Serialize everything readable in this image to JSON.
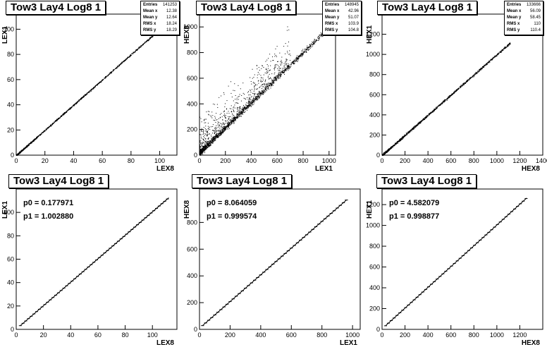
{
  "chart_data": [
    {
      "type": "scatter",
      "title": "Tow3 Lay4 Log8 1",
      "xlabel": "LEX8",
      "ylabel": "LEX1",
      "xlim": [
        0,
        112
      ],
      "ylim": [
        0,
        112
      ],
      "xticks": [
        0,
        20,
        40,
        60,
        80,
        100
      ],
      "yticks": [
        0,
        20,
        40,
        60,
        80,
        100
      ],
      "stats": [
        [
          "Entries",
          "141253"
        ],
        [
          "Mean x",
          "12.38"
        ],
        [
          "Mean y",
          "12.64"
        ],
        [
          "RMS x",
          "18.24"
        ],
        [
          "RMS y",
          "18.29"
        ]
      ],
      "relation": {
        "slope": 1.0,
        "intercept": 0,
        "xmax": 110,
        "spread": 0.6,
        "outliers": 0
      }
    },
    {
      "type": "scatter",
      "title": "Tow3 Lay4 Log8 1",
      "xlabel": "LEX1",
      "ylabel": "HEX8",
      "xlim": [
        0,
        1050
      ],
      "ylim": [
        0,
        1100
      ],
      "xticks": [
        0,
        200,
        400,
        600,
        800,
        1000
      ],
      "yticks": [
        0,
        200,
        400,
        600,
        800,
        1000
      ],
      "stats": [
        [
          "Entries",
          "148945"
        ],
        [
          "Mean x",
          "42.96"
        ],
        [
          "Mean y",
          "51.07"
        ],
        [
          "RMS x",
          "103.9"
        ],
        [
          "RMS y",
          "104.8"
        ]
      ],
      "relation": {
        "slope": 1.0,
        "intercept": 20,
        "xmax": 980,
        "spread": 22,
        "outliers": 700
      }
    },
    {
      "type": "scatter",
      "title": "Tow3 Lay4 Log8 1",
      "xlabel": "HEX8",
      "ylabel": "HEX1",
      "xlim": [
        0,
        1400
      ],
      "ylim": [
        0,
        1400
      ],
      "xticks": [
        0,
        200,
        400,
        600,
        800,
        1000,
        1200,
        1400
      ],
      "yticks": [
        0,
        200,
        400,
        600,
        800,
        1000,
        1200
      ],
      "stats": [
        [
          "Entries",
          "133666"
        ],
        [
          "Mean x",
          "56.09"
        ],
        [
          "Mean y",
          "58.45"
        ],
        [
          "RMS x",
          "110"
        ],
        [
          "RMS y",
          "110.4"
        ]
      ],
      "relation": {
        "slope": 1.0,
        "intercept": 0,
        "xmax": 1120,
        "spread": 10,
        "outliers": 0
      }
    },
    {
      "type": "line",
      "title": "Tow3 Lay4 Log8 1",
      "xlabel": "LEX8",
      "ylabel": "LEX1",
      "xlim": [
        0,
        118
      ],
      "ylim": [
        0,
        120
      ],
      "xticks": [
        0,
        20,
        40,
        60,
        80,
        100
      ],
      "yticks": [
        0,
        20,
        40,
        60,
        80,
        100
      ],
      "fit": {
        "p0": 0.177971,
        "p1": 1.00288
      },
      "fit_text": [
        "p0 = 0.177971",
        "p1 = 1.002880"
      ],
      "profile_range": [
        3,
        112
      ],
      "profile_step": 2
    },
    {
      "type": "line",
      "title": "Tow3 Lay4 Log8 1",
      "xlabel": "LEX1",
      "ylabel": "HEX8",
      "xlim": [
        0,
        1050
      ],
      "ylim": [
        0,
        1050
      ],
      "xticks": [
        0,
        200,
        400,
        600,
        800,
        1000
      ],
      "yticks": [
        0,
        200,
        400,
        600,
        800
      ],
      "fit": {
        "p0": 8.064059,
        "p1": 0.999574
      },
      "fit_text": [
        "p0 = 8.064059",
        "p1 = 0.999574"
      ],
      "profile_range": [
        20,
        960
      ],
      "profile_step": 20
    },
    {
      "type": "line",
      "title": "Tow3 Lay4 Log8 1",
      "xlabel": "HEX8",
      "ylabel": "HEX1",
      "xlim": [
        0,
        1400
      ],
      "ylim": [
        0,
        1350
      ],
      "xticks": [
        0,
        200,
        400,
        600,
        800,
        1000,
        1200
      ],
      "yticks": [
        0,
        200,
        400,
        600,
        800,
        1000,
        1200
      ],
      "fit": {
        "p0": 4.582079,
        "p1": 0.998877
      },
      "fit_text": [
        "p0 = 4.582079",
        "p1 = 0.998877"
      ],
      "profile_range": [
        30,
        1260
      ],
      "profile_step": 25
    }
  ]
}
